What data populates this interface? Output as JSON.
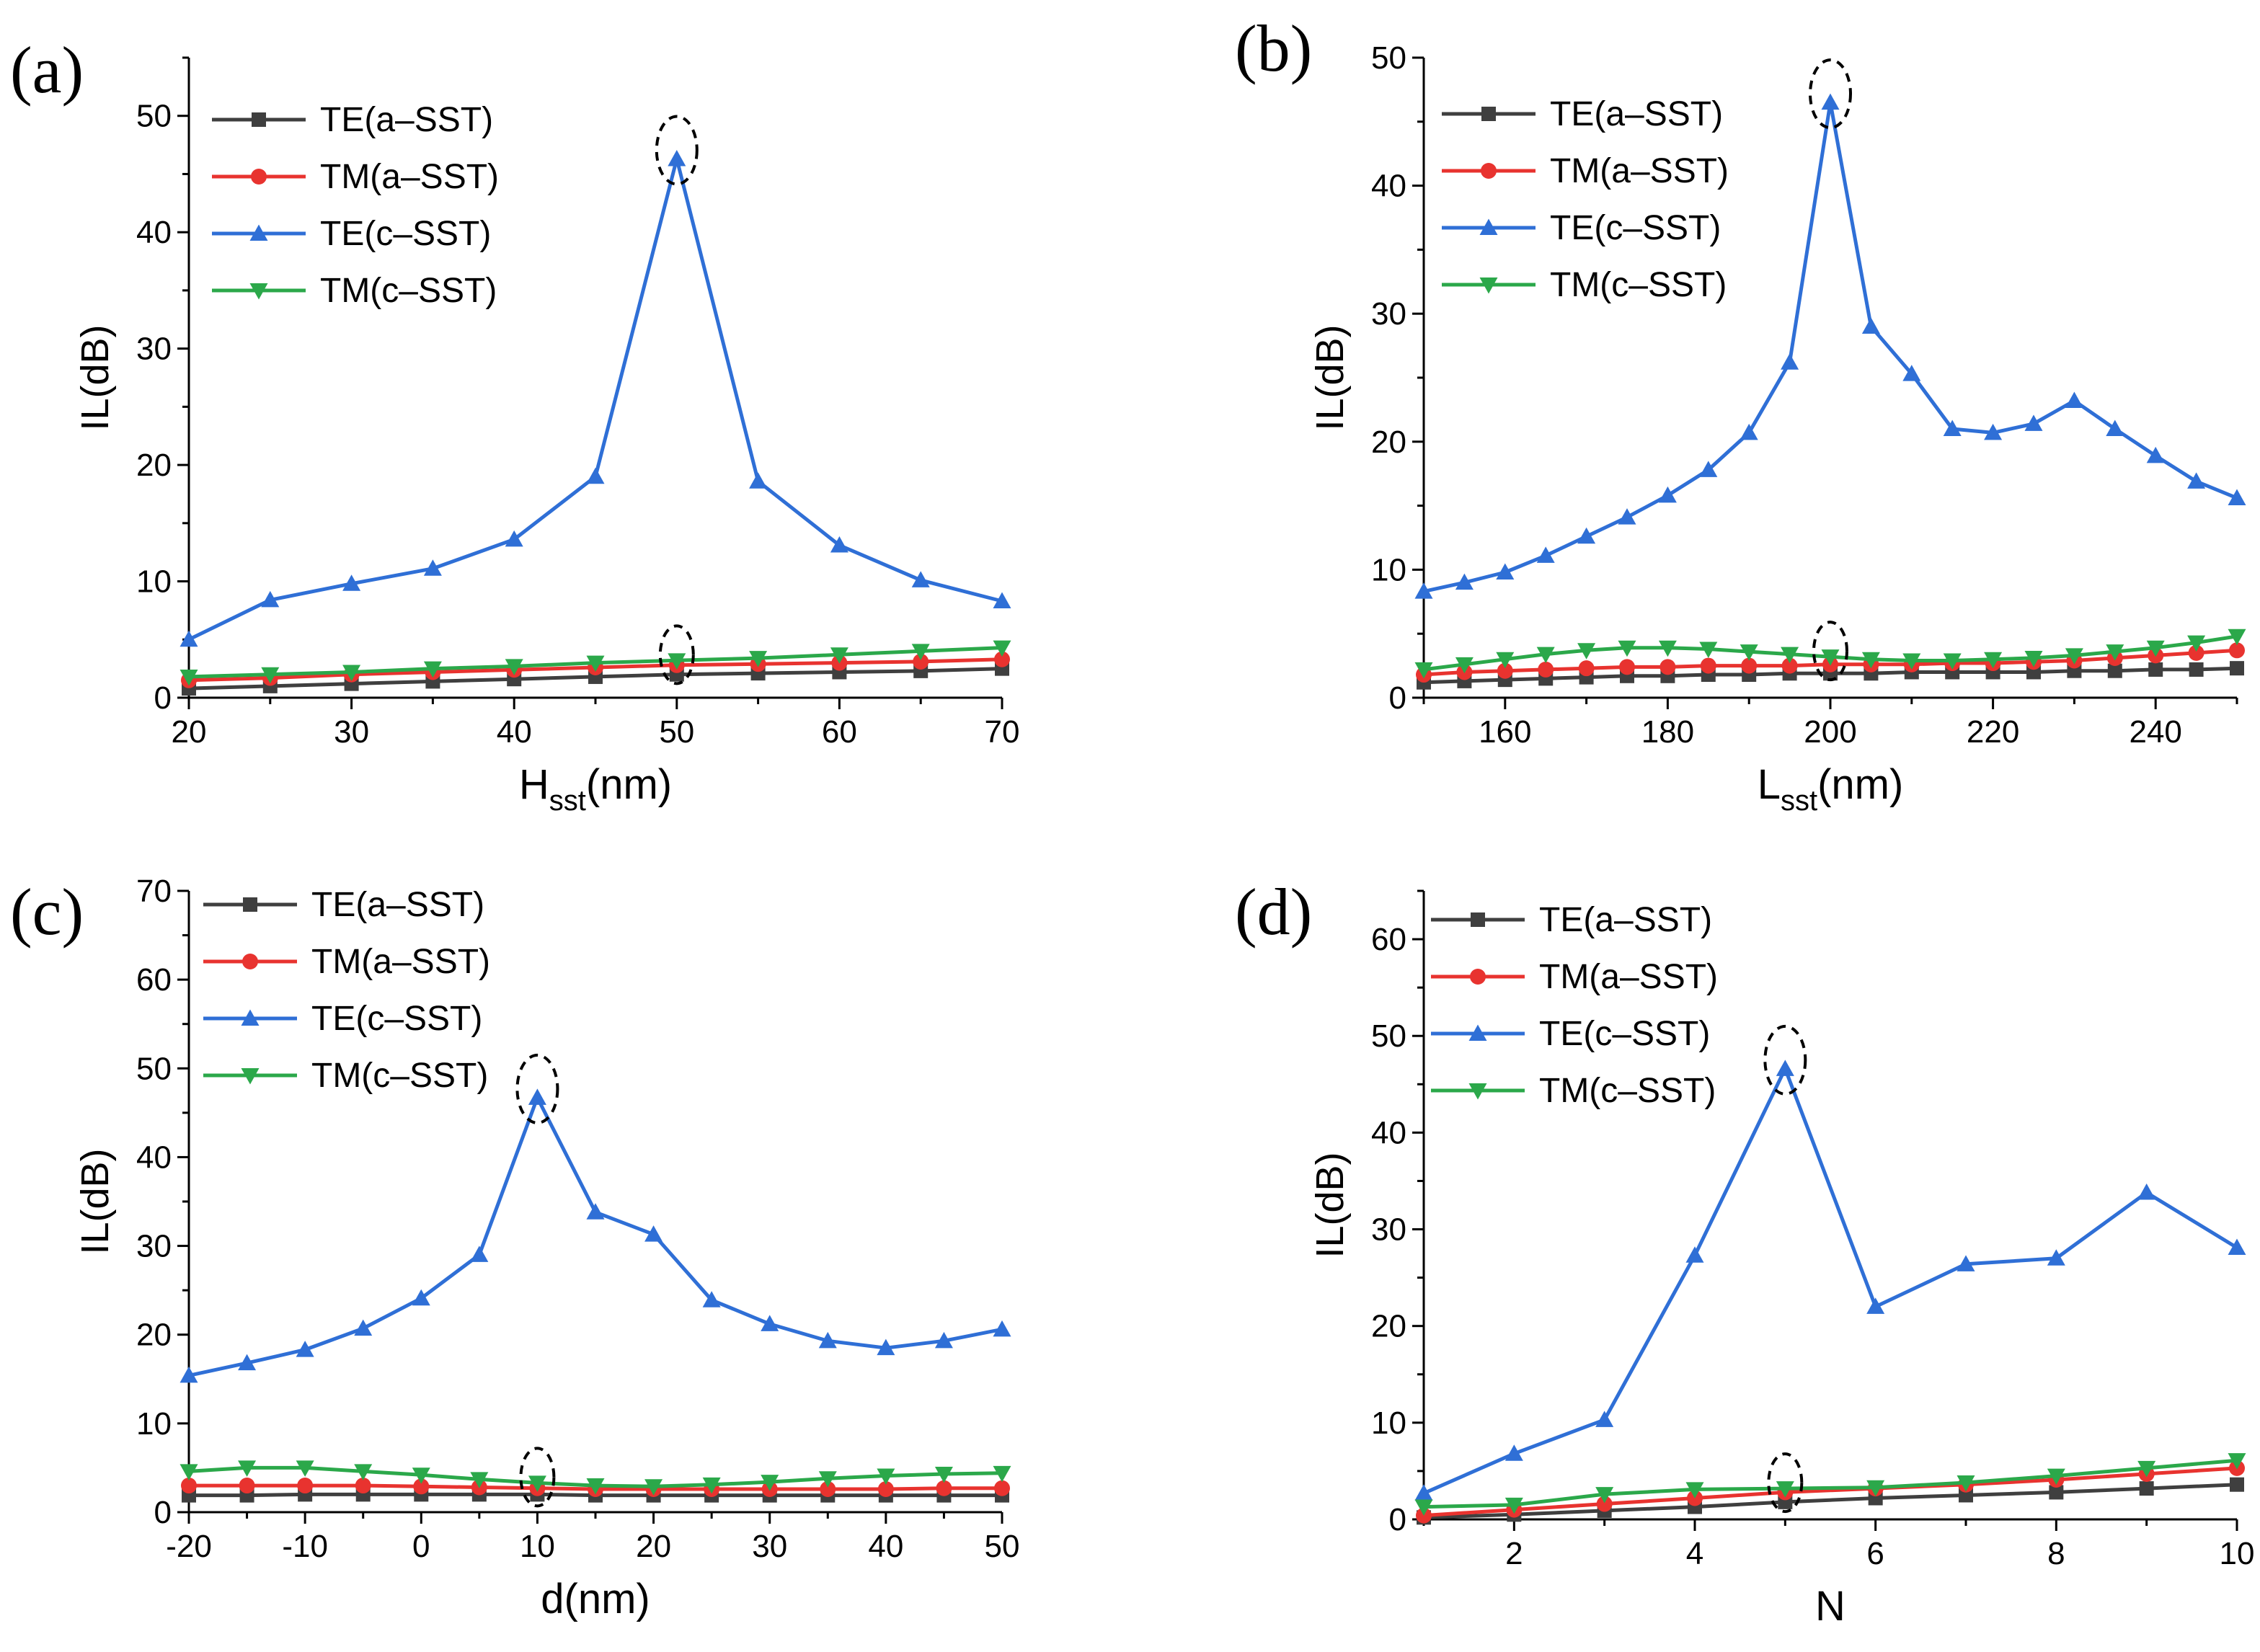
{
  "figure": {
    "colors": {
      "te_a": "#3f3f3f",
      "tm_a": "#e8332f",
      "te_c": "#2f6fd6",
      "tm_c": "#2ba84a",
      "axis": "#000000",
      "ellipse": "#000000"
    }
  },
  "chart_data": [
    {
      "type": "line",
      "panel": "(a)",
      "xlabel": "H",
      "xlabel_sub": "sst",
      "xlabel_suffix": "(nm)",
      "ylabel": "IL(dB)",
      "xlim": [
        20,
        70
      ],
      "ylim": [
        0,
        55
      ],
      "xticks": [
        20,
        30,
        40,
        50,
        60,
        70
      ],
      "xtick_labels": [
        "20",
        "30",
        "40",
        "50",
        "60",
        "70"
      ],
      "yticks": [
        0,
        10,
        20,
        30,
        40,
        50
      ],
      "ytick_labels": [
        "0",
        "10",
        "20",
        "30",
        "40",
        "50"
      ],
      "highlight_x": 50,
      "legend": "top-left",
      "x": [
        20,
        25,
        30,
        35,
        40,
        45,
        50,
        55,
        60,
        65,
        70
      ],
      "series": [
        {
          "name": "TE(a–SST)",
          "marker": "square",
          "color": "#3f3f3f",
          "values": [
            0.8,
            1.0,
            1.2,
            1.4,
            1.6,
            1.8,
            2.0,
            2.1,
            2.2,
            2.3,
            2.5
          ]
        },
        {
          "name": "TM(a–SST)",
          "marker": "circle",
          "color": "#e8332f",
          "values": [
            1.5,
            1.7,
            2.0,
            2.2,
            2.4,
            2.6,
            2.8,
            2.9,
            3.0,
            3.1,
            3.3
          ]
        },
        {
          "name": "TE(c–SST)",
          "marker": "triangle-up",
          "color": "#2f6fd6",
          "values": [
            5.0,
            8.4,
            9.8,
            11.1,
            13.6,
            19.0,
            46.3,
            18.6,
            13.1,
            10.1,
            8.3
          ]
        },
        {
          "name": "TM(c–SST)",
          "marker": "triangle-down",
          "color": "#2ba84a",
          "values": [
            1.8,
            2.0,
            2.2,
            2.5,
            2.7,
            3.0,
            3.2,
            3.4,
            3.7,
            4.0,
            4.3
          ]
        }
      ]
    },
    {
      "type": "line",
      "panel": "(b)",
      "xlabel": "L",
      "xlabel_sub": "sst",
      "xlabel_suffix": "(nm)",
      "ylabel": "IL(dB)",
      "xlim": [
        150,
        250
      ],
      "ylim": [
        0,
        50
      ],
      "xticks": [
        160,
        180,
        200,
        220,
        240
      ],
      "xtick_labels": [
        "160",
        "180",
        "200",
        "220",
        "240"
      ],
      "yticks": [
        0,
        10,
        20,
        30,
        40,
        50
      ],
      "ytick_labels": [
        "0",
        "10",
        "20",
        "30",
        "40",
        "50"
      ],
      "highlight_x": 200,
      "legend": "top-left",
      "x": [
        150,
        155,
        160,
        165,
        170,
        175,
        180,
        185,
        190,
        195,
        200,
        205,
        210,
        215,
        220,
        225,
        230,
        235,
        240,
        245,
        250
      ],
      "series": [
        {
          "name": "TE(a–SST)",
          "marker": "square",
          "color": "#3f3f3f",
          "values": [
            1.2,
            1.3,
            1.4,
            1.5,
            1.6,
            1.7,
            1.7,
            1.8,
            1.8,
            1.9,
            1.9,
            1.9,
            2.0,
            2.0,
            2.0,
            2.0,
            2.1,
            2.1,
            2.2,
            2.2,
            2.3
          ]
        },
        {
          "name": "TM(a–SST)",
          "marker": "circle",
          "color": "#e8332f",
          "values": [
            1.8,
            2.0,
            2.1,
            2.2,
            2.3,
            2.4,
            2.4,
            2.5,
            2.5,
            2.5,
            2.6,
            2.6,
            2.6,
            2.7,
            2.7,
            2.8,
            2.9,
            3.1,
            3.3,
            3.5,
            3.7
          ]
        },
        {
          "name": "TE(c–SST)",
          "marker": "triangle-up",
          "color": "#2f6fd6",
          "values": [
            8.3,
            9.0,
            9.8,
            11.1,
            12.6,
            14.1,
            15.8,
            17.8,
            20.7,
            26.2,
            46.5,
            29.0,
            25.3,
            21.0,
            20.7,
            21.4,
            23.2,
            21.0,
            18.9,
            16.9,
            15.6
          ]
        },
        {
          "name": "TM(c–SST)",
          "marker": "triangle-down",
          "color": "#2ba84a",
          "values": [
            2.2,
            2.6,
            3.0,
            3.4,
            3.7,
            3.9,
            3.9,
            3.8,
            3.6,
            3.4,
            3.2,
            3.0,
            2.9,
            2.9,
            3.0,
            3.1,
            3.3,
            3.6,
            3.9,
            4.3,
            4.8
          ]
        }
      ]
    },
    {
      "type": "line",
      "panel": "(c)",
      "xlabel": "d",
      "xlabel_sub": "",
      "xlabel_suffix": "(nm)",
      "ylabel": "IL(dB)",
      "xlim": [
        -20,
        50
      ],
      "ylim": [
        0,
        70
      ],
      "xticks": [
        -20,
        -10,
        0,
        10,
        20,
        30,
        40,
        50
      ],
      "xtick_labels": [
        "-20",
        "-10",
        "0",
        "10",
        "20",
        "30",
        "40",
        "50"
      ],
      "yticks": [
        0,
        10,
        20,
        30,
        40,
        50,
        60,
        70
      ],
      "ytick_labels": [
        "0",
        "10",
        "20",
        "30",
        "40",
        "50",
        "60",
        "70"
      ],
      "highlight_x": 10,
      "legend": "top-left",
      "x": [
        -20,
        -15,
        -10,
        -5,
        0,
        5,
        10,
        15,
        20,
        25,
        30,
        35,
        40,
        45,
        50
      ],
      "series": [
        {
          "name": "TE(a–SST)",
          "marker": "square",
          "color": "#3f3f3f",
          "values": [
            1.9,
            1.9,
            2.0,
            2.0,
            2.0,
            2.0,
            2.0,
            1.9,
            1.9,
            1.9,
            1.9,
            1.9,
            1.9,
            1.9,
            1.9
          ]
        },
        {
          "name": "TM(a–SST)",
          "marker": "circle",
          "color": "#e8332f",
          "values": [
            3.0,
            3.0,
            3.0,
            3.0,
            2.9,
            2.8,
            2.7,
            2.6,
            2.6,
            2.6,
            2.6,
            2.6,
            2.6,
            2.7,
            2.7
          ]
        },
        {
          "name": "TE(c–SST)",
          "marker": "triangle-up",
          "color": "#2f6fd6",
          "values": [
            15.4,
            16.8,
            18.3,
            20.7,
            24.1,
            29.0,
            46.7,
            33.8,
            31.3,
            23.9,
            21.2,
            19.3,
            18.5,
            19.3,
            20.6
          ]
        },
        {
          "name": "TM(c–SST)",
          "marker": "triangle-down",
          "color": "#2ba84a",
          "values": [
            4.6,
            5.0,
            5.0,
            4.6,
            4.2,
            3.7,
            3.3,
            3.0,
            2.9,
            3.1,
            3.4,
            3.8,
            4.1,
            4.3,
            4.4
          ]
        }
      ]
    },
    {
      "type": "line",
      "panel": "(d)",
      "xlabel": "N",
      "xlabel_sub": "",
      "xlabel_suffix": "",
      "ylabel": "IL(dB)",
      "xlim": [
        1,
        10
      ],
      "ylim": [
        0,
        65
      ],
      "xticks": [
        2,
        4,
        6,
        8,
        10
      ],
      "xtick_labels": [
        "2",
        "4",
        "6",
        "8",
        "10"
      ],
      "yticks": [
        0,
        10,
        20,
        30,
        40,
        50,
        60
      ],
      "ytick_labels": [
        "0",
        "10",
        "20",
        "30",
        "40",
        "50",
        "60"
      ],
      "highlight_x": 5,
      "legend": "top-left",
      "x": [
        1,
        2,
        3,
        4,
        5,
        6,
        7,
        8,
        9,
        10
      ],
      "series": [
        {
          "name": "TE(a–SST)",
          "marker": "square",
          "color": "#3f3f3f",
          "values": [
            0.2,
            0.5,
            0.9,
            1.3,
            1.8,
            2.2,
            2.5,
            2.8,
            3.2,
            3.6
          ]
        },
        {
          "name": "TM(a–SST)",
          "marker": "circle",
          "color": "#e8332f",
          "values": [
            0.4,
            1.0,
            1.6,
            2.2,
            2.8,
            3.2,
            3.6,
            4.1,
            4.7,
            5.3
          ]
        },
        {
          "name": "TE(c–SST)",
          "marker": "triangle-up",
          "color": "#2f6fd6",
          "values": [
            2.7,
            6.8,
            10.3,
            27.3,
            46.6,
            22.0,
            26.4,
            27.0,
            33.8,
            28.1
          ]
        },
        {
          "name": "TM(c–SST)",
          "marker": "triangle-down",
          "color": "#2ba84a",
          "values": [
            1.3,
            1.5,
            2.6,
            3.1,
            3.2,
            3.3,
            3.8,
            4.5,
            5.3,
            6.1
          ]
        }
      ]
    }
  ]
}
